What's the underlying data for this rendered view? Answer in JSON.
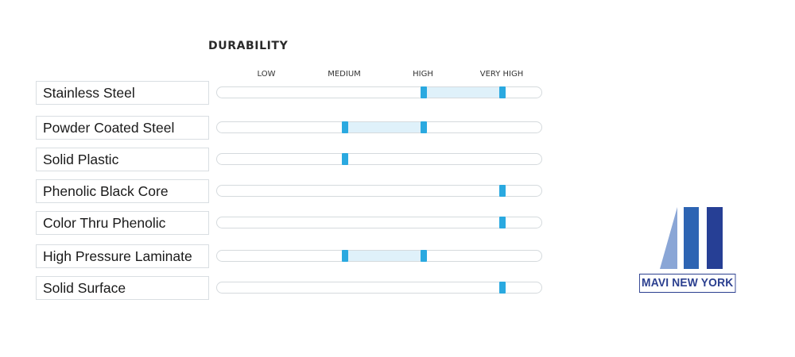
{
  "chart_data": {
    "type": "range",
    "title": "DURABILITY",
    "levels": [
      "LOW",
      "MEDIUM",
      "HIGH",
      "VERY HIGH"
    ],
    "series": [
      {
        "label": "Stainless Steel",
        "min": 3,
        "max": 4
      },
      {
        "label": "Powder Coated Steel",
        "min": 2,
        "max": 3
      },
      {
        "label": "Solid Plastic",
        "min": 2,
        "max": 2
      },
      {
        "label": "Phenolic Black Core",
        "min": 4,
        "max": 4
      },
      {
        "label": "Color Thru Phenolic",
        "min": 4,
        "max": 4
      },
      {
        "label": "High Pressure Laminate",
        "min": 2,
        "max": 3
      },
      {
        "label": "Solid Surface",
        "min": 4,
        "max": 4
      }
    ],
    "colors": {
      "marker": "#2aa9e0",
      "range": "#dff1fa",
      "track_border": "#d5dadd"
    }
  },
  "logo": {
    "text": "MAVI NEW YORK",
    "colors": {
      "light": "#8aa6d6",
      "mid": "#2d64b3",
      "dark": "#263f95"
    }
  }
}
